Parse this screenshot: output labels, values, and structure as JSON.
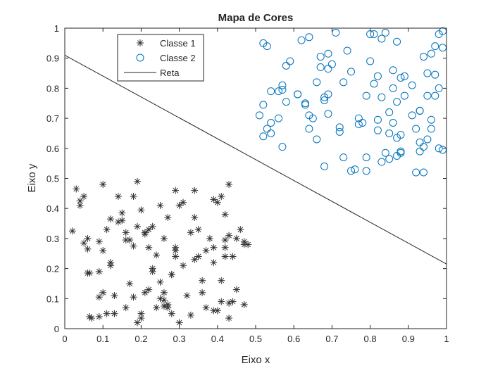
{
  "chart_data": {
    "type": "scatter",
    "title": "Mapa de Cores",
    "xlabel": "Eixo x",
    "ylabel": "Eixo y",
    "xlim": [
      0,
      1
    ],
    "ylim": [
      0,
      1
    ],
    "xticks": [
      0,
      0.1,
      0.2,
      0.3,
      0.4,
      0.5,
      0.6,
      0.7,
      0.8,
      0.9,
      1
    ],
    "yticks": [
      0,
      0.1,
      0.2,
      0.3,
      0.4,
      0.5,
      0.6,
      0.7,
      0.8,
      0.9,
      1
    ],
    "xtick_labels": [
      "0",
      "0.1",
      "0.2",
      "0.3",
      "0.4",
      "0.5",
      "0.6",
      "0.7",
      "0.8",
      "0.9",
      "1"
    ],
    "ytick_labels": [
      "0",
      "0.1",
      "0.2",
      "0.3",
      "0.4",
      "0.5",
      "0.6",
      "0.7",
      "0.8",
      "0.9",
      "1"
    ],
    "grid": false,
    "legend_position": "top-left",
    "series": [
      {
        "name": "Classe 1",
        "marker": "asterisk",
        "color": "#333333",
        "points": [
          [
            0.03,
            0.465
          ],
          [
            0.04,
            0.425
          ],
          [
            0.04,
            0.41
          ],
          [
            0.05,
            0.44
          ],
          [
            0.02,
            0.325
          ],
          [
            0.05,
            0.285
          ],
          [
            0.06,
            0.3
          ],
          [
            0.06,
            0.265
          ],
          [
            0.06,
            0.185
          ],
          [
            0.065,
            0.185
          ],
          [
            0.07,
            0.035
          ],
          [
            0.065,
            0.04
          ],
          [
            0.09,
            0.04
          ],
          [
            0.09,
            0.105
          ],
          [
            0.1,
            0.12
          ],
          [
            0.1,
            0.48
          ],
          [
            0.11,
            0.33
          ],
          [
            0.11,
            0.05
          ],
          [
            0.12,
            0.365
          ],
          [
            0.12,
            0.21
          ],
          [
            0.12,
            0.22
          ],
          [
            0.13,
            0.05
          ],
          [
            0.13,
            0.11
          ],
          [
            0.14,
            0.44
          ],
          [
            0.14,
            0.355
          ],
          [
            0.15,
            0.385
          ],
          [
            0.09,
            0.29
          ],
          [
            0.1,
            0.26
          ],
          [
            0.16,
            0.295
          ],
          [
            0.16,
            0.32
          ],
          [
            0.17,
            0.295
          ],
          [
            0.17,
            0.15
          ],
          [
            0.18,
            0.105
          ],
          [
            0.18,
            0.275
          ],
          [
            0.18,
            0.44
          ],
          [
            0.19,
            0.49
          ],
          [
            0.19,
            0.02
          ],
          [
            0.19,
            0.34
          ],
          [
            0.2,
            0.395
          ],
          [
            0.2,
            0.05
          ],
          [
            0.2,
            0.035
          ],
          [
            0.21,
            0.12
          ],
          [
            0.21,
            0.315
          ],
          [
            0.22,
            0.33
          ],
          [
            0.22,
            0.27
          ],
          [
            0.22,
            0.13
          ],
          [
            0.23,
            0.2
          ],
          [
            0.23,
            0.19
          ],
          [
            0.23,
            0.34
          ],
          [
            0.24,
            0.07
          ],
          [
            0.25,
            0.41
          ],
          [
            0.25,
            0.155
          ],
          [
            0.26,
            0.3
          ],
          [
            0.26,
            0.095
          ],
          [
            0.26,
            0.075
          ],
          [
            0.27,
            0.08
          ],
          [
            0.27,
            0.07
          ],
          [
            0.27,
            0.37
          ],
          [
            0.28,
            0.18
          ],
          [
            0.28,
            0.05
          ],
          [
            0.28,
            0.18
          ],
          [
            0.29,
            0.46
          ],
          [
            0.29,
            0.27
          ],
          [
            0.29,
            0.26
          ],
          [
            0.3,
            0.02
          ],
          [
            0.3,
            0.41
          ],
          [
            0.31,
            0.42
          ],
          [
            0.31,
            0.21
          ],
          [
            0.32,
            0.11
          ],
          [
            0.33,
            0.32
          ],
          [
            0.33,
            0.045
          ],
          [
            0.34,
            0.46
          ],
          [
            0.34,
            0.23
          ],
          [
            0.35,
            0.24
          ],
          [
            0.36,
            0.16
          ],
          [
            0.36,
            0.12
          ],
          [
            0.37,
            0.26
          ],
          [
            0.39,
            0.43
          ],
          [
            0.39,
            0.06
          ],
          [
            0.39,
            0.22
          ],
          [
            0.39,
            0.27
          ],
          [
            0.4,
            0.42
          ],
          [
            0.4,
            0.06
          ],
          [
            0.41,
            0.44
          ],
          [
            0.41,
            0.16
          ],
          [
            0.41,
            0.09
          ],
          [
            0.42,
            0.38
          ],
          [
            0.42,
            0.295
          ],
          [
            0.42,
            0.27
          ],
          [
            0.42,
            0.24
          ],
          [
            0.43,
            0.48
          ],
          [
            0.43,
            0.31
          ],
          [
            0.43,
            0.085
          ],
          [
            0.43,
            0.035
          ],
          [
            0.44,
            0.24
          ],
          [
            0.44,
            0.09
          ],
          [
            0.45,
            0.3
          ],
          [
            0.46,
            0.33
          ],
          [
            0.47,
            0.29
          ],
          [
            0.47,
            0.28
          ],
          [
            0.47,
            0.08
          ],
          [
            0.48,
            0.28
          ],
          [
            0.38,
            0.3
          ],
          [
            0.35,
            0.33
          ],
          [
            0.29,
            0.24
          ],
          [
            0.24,
            0.245
          ],
          [
            0.21,
            0.32
          ],
          [
            0.15,
            0.36
          ],
          [
            0.25,
            0.1
          ],
          [
            0.34,
            0.37
          ],
          [
            0.45,
            0.13
          ],
          [
            0.26,
            0.12
          ],
          [
            0.09,
            0.19
          ],
          [
            0.16,
            0.07
          ],
          [
            0.37,
            0.07
          ]
        ]
      },
      {
        "name": "Classe 2",
        "marker": "circle",
        "color": "#0072BD",
        "points": [
          [
            0.52,
            0.95
          ],
          [
            0.53,
            0.94
          ],
          [
            0.51,
            0.71
          ],
          [
            0.52,
            0.64
          ],
          [
            0.52,
            0.745
          ],
          [
            0.53,
            0.665
          ],
          [
            0.54,
            0.79
          ],
          [
            0.54,
            0.685
          ],
          [
            0.54,
            0.65
          ],
          [
            0.56,
            0.79
          ],
          [
            0.56,
            0.7
          ],
          [
            0.57,
            0.605
          ],
          [
            0.57,
            0.795
          ],
          [
            0.57,
            0.81
          ],
          [
            0.58,
            0.875
          ],
          [
            0.58,
            0.755
          ],
          [
            0.59,
            0.89
          ],
          [
            0.61,
            0.78
          ],
          [
            0.61,
            0.78
          ],
          [
            0.62,
            0.96
          ],
          [
            0.63,
            0.75
          ],
          [
            0.63,
            0.745
          ],
          [
            0.64,
            0.97
          ],
          [
            0.64,
            0.71
          ],
          [
            0.64,
            0.665
          ],
          [
            0.65,
            0.7
          ],
          [
            0.66,
            0.63
          ],
          [
            0.66,
            0.82
          ],
          [
            0.67,
            0.905
          ],
          [
            0.67,
            0.87
          ],
          [
            0.68,
            0.76
          ],
          [
            0.68,
            0.54
          ],
          [
            0.68,
            0.77
          ],
          [
            0.69,
            0.915
          ],
          [
            0.69,
            0.715
          ],
          [
            0.69,
            0.865
          ],
          [
            0.69,
            0.78
          ],
          [
            0.7,
            0.88
          ],
          [
            0.71,
            0.985
          ],
          [
            0.72,
            0.67
          ],
          [
            0.72,
            0.655
          ],
          [
            0.73,
            0.57
          ],
          [
            0.73,
            0.82
          ],
          [
            0.74,
            0.925
          ],
          [
            0.75,
            0.525
          ],
          [
            0.75,
            0.855
          ],
          [
            0.76,
            0.53
          ],
          [
            0.77,
            0.7
          ],
          [
            0.78,
            0.685
          ],
          [
            0.79,
            0.57
          ],
          [
            0.79,
            0.775
          ],
          [
            0.8,
            0.98
          ],
          [
            0.8,
            0.89
          ],
          [
            0.81,
            0.98
          ],
          [
            0.81,
            0.815
          ],
          [
            0.82,
            0.66
          ],
          [
            0.82,
            0.695
          ],
          [
            0.82,
            0.84
          ],
          [
            0.83,
            0.555
          ],
          [
            0.83,
            0.965
          ],
          [
            0.83,
            0.77
          ],
          [
            0.84,
            0.985
          ],
          [
            0.84,
            0.585
          ],
          [
            0.85,
            0.72
          ],
          [
            0.85,
            0.65
          ],
          [
            0.85,
            0.565
          ],
          [
            0.86,
            0.86
          ],
          [
            0.86,
            0.685
          ],
          [
            0.86,
            0.8
          ],
          [
            0.87,
            0.955
          ],
          [
            0.87,
            0.755
          ],
          [
            0.87,
            0.635
          ],
          [
            0.88,
            0.59
          ],
          [
            0.88,
            0.585
          ],
          [
            0.88,
            0.835
          ],
          [
            0.88,
            0.645
          ],
          [
            0.89,
            0.84
          ],
          [
            0.89,
            0.775
          ],
          [
            0.91,
            0.81
          ],
          [
            0.92,
            0.665
          ],
          [
            0.92,
            0.52
          ],
          [
            0.93,
            0.725
          ],
          [
            0.93,
            0.725
          ],
          [
            0.93,
            0.59
          ],
          [
            0.94,
            0.605
          ],
          [
            0.94,
            0.905
          ],
          [
            0.94,
            0.52
          ],
          [
            0.95,
            0.85
          ],
          [
            0.95,
            0.775
          ],
          [
            0.95,
            0.63
          ],
          [
            0.96,
            0.915
          ],
          [
            0.96,
            0.695
          ],
          [
            0.96,
            0.665
          ],
          [
            0.97,
            0.94
          ],
          [
            0.97,
            0.775
          ],
          [
            0.97,
            0.845
          ],
          [
            0.98,
            0.98
          ],
          [
            0.98,
            0.6
          ],
          [
            0.98,
            0.8
          ],
          [
            0.99,
            0.935
          ],
          [
            0.99,
            0.595
          ],
          [
            0.99,
            0.99
          ],
          [
            0.93,
            0.62
          ],
          [
            0.91,
            0.71
          ],
          [
            0.77,
            0.68
          ],
          [
            0.87,
            0.575
          ],
          [
            0.79,
            0.525
          ]
        ]
      },
      {
        "name": "Reta",
        "marker": "line",
        "color": "#262626",
        "points": [
          [
            0,
            0.91
          ],
          [
            1,
            0.215
          ]
        ]
      }
    ]
  }
}
